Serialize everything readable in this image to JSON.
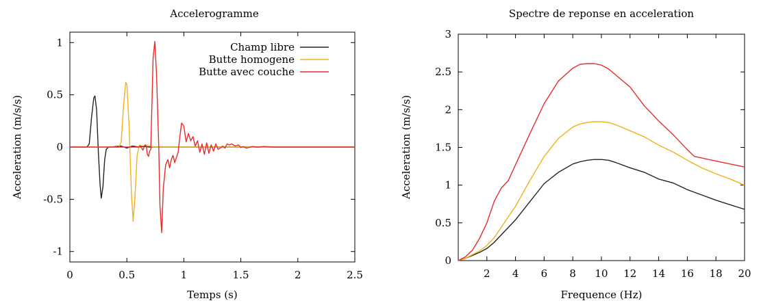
{
  "chart_data": [
    {
      "type": "line",
      "title": "Accelerogramme",
      "xlabel": "Temps (s)",
      "ylabel": "Acceleration (m/s/s)",
      "xlim": [
        0,
        2.5
      ],
      "ylim": [
        -1.1,
        1.1
      ],
      "xticks": [
        0,
        0.5,
        1,
        1.5,
        2,
        2.5
      ],
      "xtick_labels": [
        "0",
        "0.5",
        "1",
        "1.5",
        "2",
        "2.5"
      ],
      "yticks": [
        -1,
        -0.5,
        0,
        0.5,
        1
      ],
      "ytick_labels": [
        "-1",
        "-0.5",
        "0",
        "0.5",
        "1"
      ],
      "grid": false,
      "legend_position": "top-right",
      "series": [
        {
          "name": "Champ libre",
          "color": "#222222",
          "x": [
            0,
            0.15,
            0.17,
            0.19,
            0.21,
            0.22,
            0.235,
            0.25,
            0.265,
            0.275,
            0.29,
            0.305,
            0.32,
            0.34,
            0.36,
            0.45,
            0.5,
            0.55,
            0.6,
            0.65,
            0.7,
            0.75,
            2.5
          ],
          "y": [
            0,
            0,
            0.03,
            0.28,
            0.47,
            0.49,
            0.35,
            -0.05,
            -0.36,
            -0.49,
            -0.38,
            -0.12,
            -0.02,
            0,
            0,
            0.01,
            -0.01,
            0.01,
            0,
            0.005,
            0,
            0,
            0
          ]
        },
        {
          "name": "Butte homogene",
          "color": "#f2b01e",
          "x": [
            0,
            0.43,
            0.45,
            0.47,
            0.49,
            0.5,
            0.52,
            0.54,
            0.555,
            0.57,
            0.59,
            0.61,
            0.64,
            0.67,
            0.7,
            0.73,
            0.76,
            2.5
          ],
          "y": [
            0,
            0,
            0.05,
            0.38,
            0.62,
            0.6,
            0.2,
            -0.45,
            -0.71,
            -0.5,
            -0.08,
            0.02,
            0.01,
            0.02,
            0.01,
            0,
            0,
            0
          ]
        },
        {
          "name": "Butte avec couche",
          "color": "#e62b2b",
          "x": [
            0,
            0.6,
            0.62,
            0.64,
            0.66,
            0.67,
            0.68,
            0.69,
            0.7,
            0.71,
            0.72,
            0.73,
            0.745,
            0.76,
            0.78,
            0.79,
            0.805,
            0.82,
            0.84,
            0.86,
            0.875,
            0.89,
            0.905,
            0.92,
            0.935,
            0.95,
            0.965,
            0.98,
            1.0,
            1.02,
            1.04,
            1.06,
            1.08,
            1.1,
            1.12,
            1.14,
            1.16,
            1.18,
            1.2,
            1.22,
            1.24,
            1.26,
            1.28,
            1.3,
            1.32,
            1.34,
            1.36,
            1.38,
            1.4,
            1.42,
            1.45,
            1.48,
            1.5,
            1.52,
            1.55,
            1.6,
            1.65,
            1.7,
            1.8,
            2.0,
            2.5
          ],
          "y": [
            0,
            0,
            0.01,
            -0.03,
            0.02,
            0.01,
            -0.07,
            -0.09,
            -0.04,
            -0.02,
            0.4,
            0.85,
            1.01,
            0.7,
            0.0,
            -0.55,
            -0.82,
            -0.4,
            -0.17,
            -0.12,
            -0.2,
            -0.12,
            -0.08,
            -0.15,
            -0.1,
            -0.05,
            0.1,
            0.23,
            0.2,
            0.05,
            0.13,
            0.06,
            0.1,
            0.01,
            0.06,
            -0.05,
            0.03,
            -0.07,
            0.04,
            -0.06,
            0.02,
            -0.04,
            0.03,
            -0.02,
            -0.01,
            0.01,
            -0.01,
            0.03,
            0.02,
            0.03,
            0.01,
            0.02,
            -0.005,
            0.005,
            -0.01,
            0.005,
            0,
            0.005,
            0,
            0,
            0
          ]
        }
      ]
    },
    {
      "type": "line",
      "title": "Spectre de reponse en acceleration",
      "xlabel": "Frequence (Hz)",
      "ylabel": "Acceleration (m/s/s)",
      "xlim": [
        0,
        20
      ],
      "ylim": [
        0,
        3
      ],
      "xticks": [
        2,
        4,
        6,
        8,
        10,
        12,
        14,
        16,
        18,
        20
      ],
      "xtick_labels": [
        "2",
        "4",
        "6",
        "8",
        "10",
        "12",
        "14",
        "16",
        "18",
        "20"
      ],
      "yticks": [
        0,
        0.5,
        1,
        1.5,
        2,
        2.5,
        3
      ],
      "ytick_labels": [
        "0",
        "0.5",
        "1",
        "1.5",
        "2",
        "2.5",
        "3"
      ],
      "grid": false,
      "series": [
        {
          "name": "Champ libre",
          "color": "#222222",
          "x": [
            0,
            0.5,
            1,
            1.5,
            2,
            2.5,
            3,
            3.5,
            4,
            5,
            6,
            7,
            8,
            8.5,
            9,
            9.5,
            10,
            10.5,
            11,
            12,
            13,
            14,
            15,
            16,
            17,
            18,
            19,
            20
          ],
          "y": [
            0,
            0.03,
            0.07,
            0.11,
            0.16,
            0.24,
            0.34,
            0.44,
            0.54,
            0.78,
            1.02,
            1.17,
            1.28,
            1.31,
            1.33,
            1.34,
            1.34,
            1.33,
            1.3,
            1.23,
            1.17,
            1.08,
            1.03,
            0.94,
            0.87,
            0.8,
            0.74,
            0.68
          ]
        },
        {
          "name": "Butte homogene",
          "color": "#f2b01e",
          "x": [
            0,
            0.5,
            1,
            1.5,
            2,
            2.5,
            3,
            3.5,
            4,
            5,
            6,
            7,
            8,
            8.5,
            9,
            9.5,
            10,
            10.5,
            11,
            12,
            13,
            14,
            15,
            16,
            17,
            18,
            19,
            20
          ],
          "y": [
            0,
            0.03,
            0.08,
            0.13,
            0.2,
            0.3,
            0.44,
            0.58,
            0.72,
            1.06,
            1.38,
            1.62,
            1.77,
            1.81,
            1.83,
            1.84,
            1.84,
            1.83,
            1.8,
            1.72,
            1.64,
            1.53,
            1.44,
            1.33,
            1.23,
            1.15,
            1.08,
            1.0
          ]
        },
        {
          "name": "Butte avec couche",
          "color": "#e62b2b",
          "x": [
            0,
            0.5,
            1,
            1.5,
            2,
            2.5,
            3,
            3.5,
            4,
            5,
            6,
            7,
            8,
            8.5,
            9,
            9.5,
            10,
            10.5,
            11,
            12,
            13,
            14,
            15,
            16,
            16.5,
            17,
            18,
            19,
            20
          ],
          "y": [
            0,
            0.05,
            0.14,
            0.3,
            0.5,
            0.78,
            0.96,
            1.06,
            1.27,
            1.68,
            2.08,
            2.38,
            2.55,
            2.6,
            2.61,
            2.61,
            2.59,
            2.54,
            2.46,
            2.3,
            2.05,
            1.85,
            1.67,
            1.47,
            1.38,
            1.36,
            1.32,
            1.28,
            1.24
          ]
        }
      ]
    }
  ]
}
